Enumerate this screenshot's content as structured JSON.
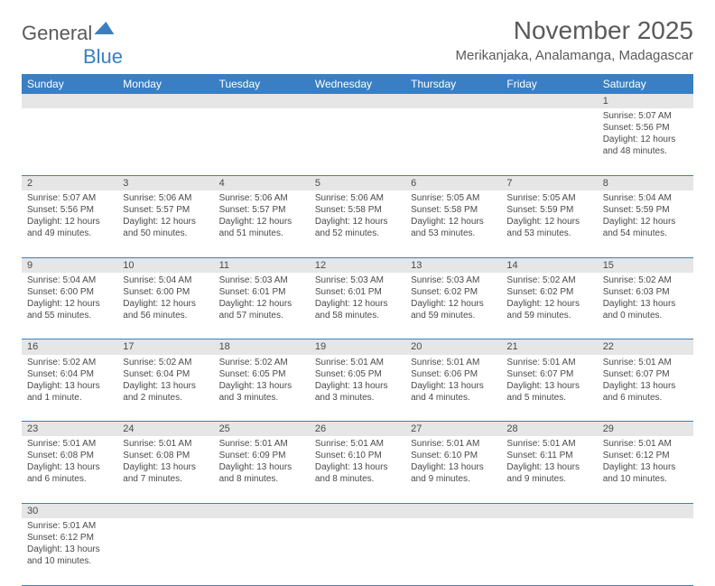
{
  "logo": {
    "part1": "General",
    "part2": "Blue"
  },
  "title": "November 2025",
  "location": "Merikanjaka, Analamanga, Madagascar",
  "weekdays": [
    "Sunday",
    "Monday",
    "Tuesday",
    "Wednesday",
    "Thursday",
    "Friday",
    "Saturday"
  ],
  "colors": {
    "header_bg": "#3a7fc4",
    "header_text": "#ffffff",
    "daynum_bg": "#e6e6e6",
    "text": "#4a4a4a",
    "rule": "#3a7fc4"
  },
  "weeks": [
    [
      null,
      null,
      null,
      null,
      null,
      null,
      {
        "n": "1",
        "sr": "Sunrise: 5:07 AM",
        "ss": "Sunset: 5:56 PM",
        "dl1": "Daylight: 12 hours",
        "dl2": "and 48 minutes."
      }
    ],
    [
      {
        "n": "2",
        "sr": "Sunrise: 5:07 AM",
        "ss": "Sunset: 5:56 PM",
        "dl1": "Daylight: 12 hours",
        "dl2": "and 49 minutes."
      },
      {
        "n": "3",
        "sr": "Sunrise: 5:06 AM",
        "ss": "Sunset: 5:57 PM",
        "dl1": "Daylight: 12 hours",
        "dl2": "and 50 minutes."
      },
      {
        "n": "4",
        "sr": "Sunrise: 5:06 AM",
        "ss": "Sunset: 5:57 PM",
        "dl1": "Daylight: 12 hours",
        "dl2": "and 51 minutes."
      },
      {
        "n": "5",
        "sr": "Sunrise: 5:06 AM",
        "ss": "Sunset: 5:58 PM",
        "dl1": "Daylight: 12 hours",
        "dl2": "and 52 minutes."
      },
      {
        "n": "6",
        "sr": "Sunrise: 5:05 AM",
        "ss": "Sunset: 5:58 PM",
        "dl1": "Daylight: 12 hours",
        "dl2": "and 53 minutes."
      },
      {
        "n": "7",
        "sr": "Sunrise: 5:05 AM",
        "ss": "Sunset: 5:59 PM",
        "dl1": "Daylight: 12 hours",
        "dl2": "and 53 minutes."
      },
      {
        "n": "8",
        "sr": "Sunrise: 5:04 AM",
        "ss": "Sunset: 5:59 PM",
        "dl1": "Daylight: 12 hours",
        "dl2": "and 54 minutes."
      }
    ],
    [
      {
        "n": "9",
        "sr": "Sunrise: 5:04 AM",
        "ss": "Sunset: 6:00 PM",
        "dl1": "Daylight: 12 hours",
        "dl2": "and 55 minutes."
      },
      {
        "n": "10",
        "sr": "Sunrise: 5:04 AM",
        "ss": "Sunset: 6:00 PM",
        "dl1": "Daylight: 12 hours",
        "dl2": "and 56 minutes."
      },
      {
        "n": "11",
        "sr": "Sunrise: 5:03 AM",
        "ss": "Sunset: 6:01 PM",
        "dl1": "Daylight: 12 hours",
        "dl2": "and 57 minutes."
      },
      {
        "n": "12",
        "sr": "Sunrise: 5:03 AM",
        "ss": "Sunset: 6:01 PM",
        "dl1": "Daylight: 12 hours",
        "dl2": "and 58 minutes."
      },
      {
        "n": "13",
        "sr": "Sunrise: 5:03 AM",
        "ss": "Sunset: 6:02 PM",
        "dl1": "Daylight: 12 hours",
        "dl2": "and 59 minutes."
      },
      {
        "n": "14",
        "sr": "Sunrise: 5:02 AM",
        "ss": "Sunset: 6:02 PM",
        "dl1": "Daylight: 12 hours",
        "dl2": "and 59 minutes."
      },
      {
        "n": "15",
        "sr": "Sunrise: 5:02 AM",
        "ss": "Sunset: 6:03 PM",
        "dl1": "Daylight: 13 hours",
        "dl2": "and 0 minutes."
      }
    ],
    [
      {
        "n": "16",
        "sr": "Sunrise: 5:02 AM",
        "ss": "Sunset: 6:04 PM",
        "dl1": "Daylight: 13 hours",
        "dl2": "and 1 minute."
      },
      {
        "n": "17",
        "sr": "Sunrise: 5:02 AM",
        "ss": "Sunset: 6:04 PM",
        "dl1": "Daylight: 13 hours",
        "dl2": "and 2 minutes."
      },
      {
        "n": "18",
        "sr": "Sunrise: 5:02 AM",
        "ss": "Sunset: 6:05 PM",
        "dl1": "Daylight: 13 hours",
        "dl2": "and 3 minutes."
      },
      {
        "n": "19",
        "sr": "Sunrise: 5:01 AM",
        "ss": "Sunset: 6:05 PM",
        "dl1": "Daylight: 13 hours",
        "dl2": "and 3 minutes."
      },
      {
        "n": "20",
        "sr": "Sunrise: 5:01 AM",
        "ss": "Sunset: 6:06 PM",
        "dl1": "Daylight: 13 hours",
        "dl2": "and 4 minutes."
      },
      {
        "n": "21",
        "sr": "Sunrise: 5:01 AM",
        "ss": "Sunset: 6:07 PM",
        "dl1": "Daylight: 13 hours",
        "dl2": "and 5 minutes."
      },
      {
        "n": "22",
        "sr": "Sunrise: 5:01 AM",
        "ss": "Sunset: 6:07 PM",
        "dl1": "Daylight: 13 hours",
        "dl2": "and 6 minutes."
      }
    ],
    [
      {
        "n": "23",
        "sr": "Sunrise: 5:01 AM",
        "ss": "Sunset: 6:08 PM",
        "dl1": "Daylight: 13 hours",
        "dl2": "and 6 minutes."
      },
      {
        "n": "24",
        "sr": "Sunrise: 5:01 AM",
        "ss": "Sunset: 6:08 PM",
        "dl1": "Daylight: 13 hours",
        "dl2": "and 7 minutes."
      },
      {
        "n": "25",
        "sr": "Sunrise: 5:01 AM",
        "ss": "Sunset: 6:09 PM",
        "dl1": "Daylight: 13 hours",
        "dl2": "and 8 minutes."
      },
      {
        "n": "26",
        "sr": "Sunrise: 5:01 AM",
        "ss": "Sunset: 6:10 PM",
        "dl1": "Daylight: 13 hours",
        "dl2": "and 8 minutes."
      },
      {
        "n": "27",
        "sr": "Sunrise: 5:01 AM",
        "ss": "Sunset: 6:10 PM",
        "dl1": "Daylight: 13 hours",
        "dl2": "and 9 minutes."
      },
      {
        "n": "28",
        "sr": "Sunrise: 5:01 AM",
        "ss": "Sunset: 6:11 PM",
        "dl1": "Daylight: 13 hours",
        "dl2": "and 9 minutes."
      },
      {
        "n": "29",
        "sr": "Sunrise: 5:01 AM",
        "ss": "Sunset: 6:12 PM",
        "dl1": "Daylight: 13 hours",
        "dl2": "and 10 minutes."
      }
    ],
    [
      {
        "n": "30",
        "sr": "Sunrise: 5:01 AM",
        "ss": "Sunset: 6:12 PM",
        "dl1": "Daylight: 13 hours",
        "dl2": "and 10 minutes."
      },
      null,
      null,
      null,
      null,
      null,
      null
    ]
  ]
}
